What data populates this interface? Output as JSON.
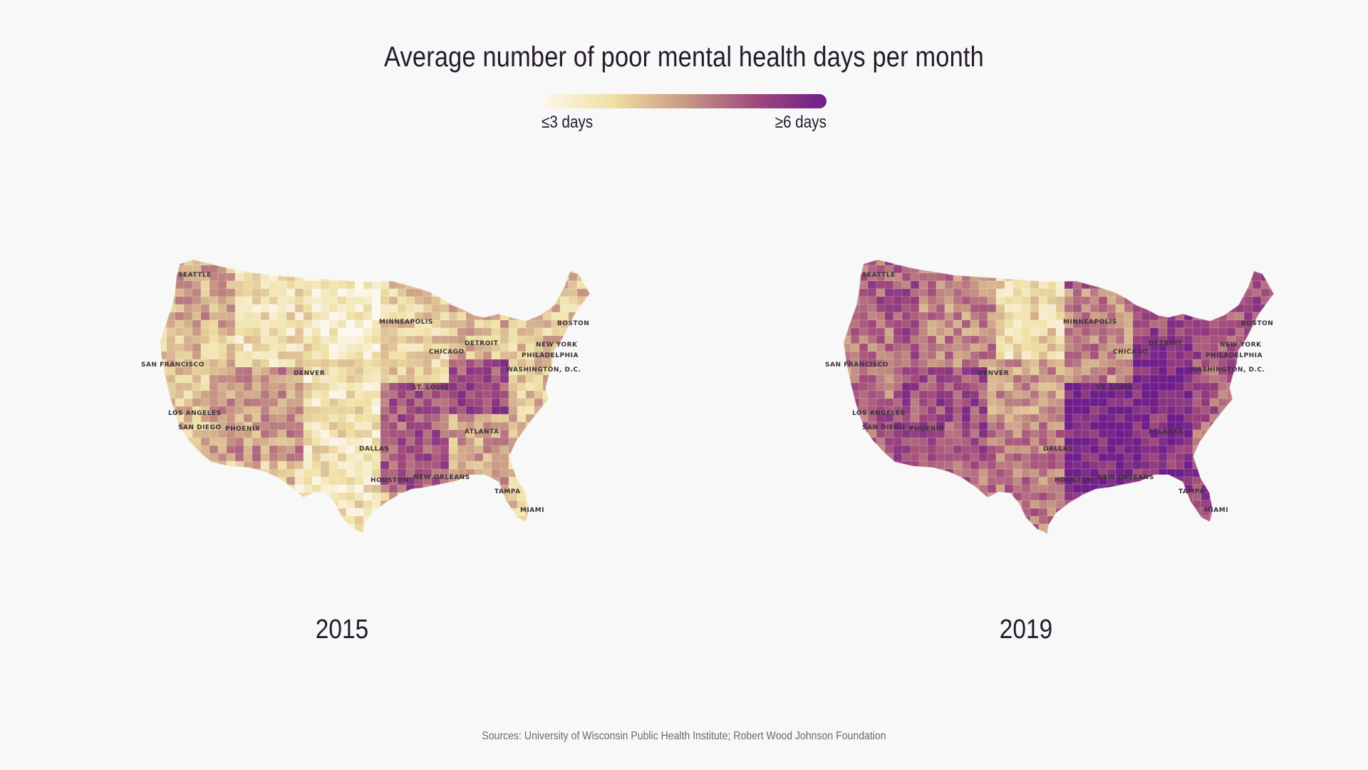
{
  "title": "Average number of poor mental health days per month",
  "legend": {
    "low_label": "≤3 days",
    "high_label": "≥6 days",
    "scale_min_days": 3,
    "scale_max_days": 6,
    "colors": [
      "#fdf7ef",
      "#efe0a3",
      "#c99a84",
      "#a1497c",
      "#6e1e8a"
    ]
  },
  "maps": [
    {
      "year": "2015",
      "overall_level": 0.35,
      "regional_levels": {
        "pacific_northwest": 0.45,
        "california": 0.35,
        "southwest": 0.5,
        "mountain": 0.2,
        "northern_plains": 0.1,
        "southern_plains": 0.2,
        "texas": 0.2,
        "midwest": 0.3,
        "great_lakes": 0.4,
        "northeast": 0.35,
        "appalachia": 0.75,
        "lower_mississippi": 0.7,
        "southeast": 0.45,
        "florida": 0.3
      }
    },
    {
      "year": "2019",
      "overall_level": 0.7,
      "regional_levels": {
        "pacific_northwest": 0.7,
        "california": 0.6,
        "southwest": 0.75,
        "mountain": 0.55,
        "northern_plains": 0.25,
        "southern_plains": 0.5,
        "texas": 0.6,
        "midwest": 0.55,
        "great_lakes": 0.8,
        "northeast": 0.75,
        "appalachia": 0.95,
        "lower_mississippi": 0.95,
        "southeast": 0.9,
        "florida": 0.8
      }
    }
  ],
  "cities": [
    "SEATTLE",
    "SAN FRANCISCO",
    "LOS ANGELES",
    "SAN DIEGO",
    "PHOENIX",
    "DENVER",
    "MINNEAPOLIS",
    "CHICAGO",
    "DETROIT",
    "ST. LOUIS",
    "DALLAS",
    "HOUSTON",
    "NEW ORLEANS",
    "ATLANTA",
    "TAMPA",
    "MIAMI",
    "WASHINGTON, D.C.",
    "PHILADELPHIA",
    "NEW YORK",
    "BOSTON"
  ],
  "source": "Sources: University of Wisconsin Public Health Institute; Robert Wood Johnson Foundation"
}
